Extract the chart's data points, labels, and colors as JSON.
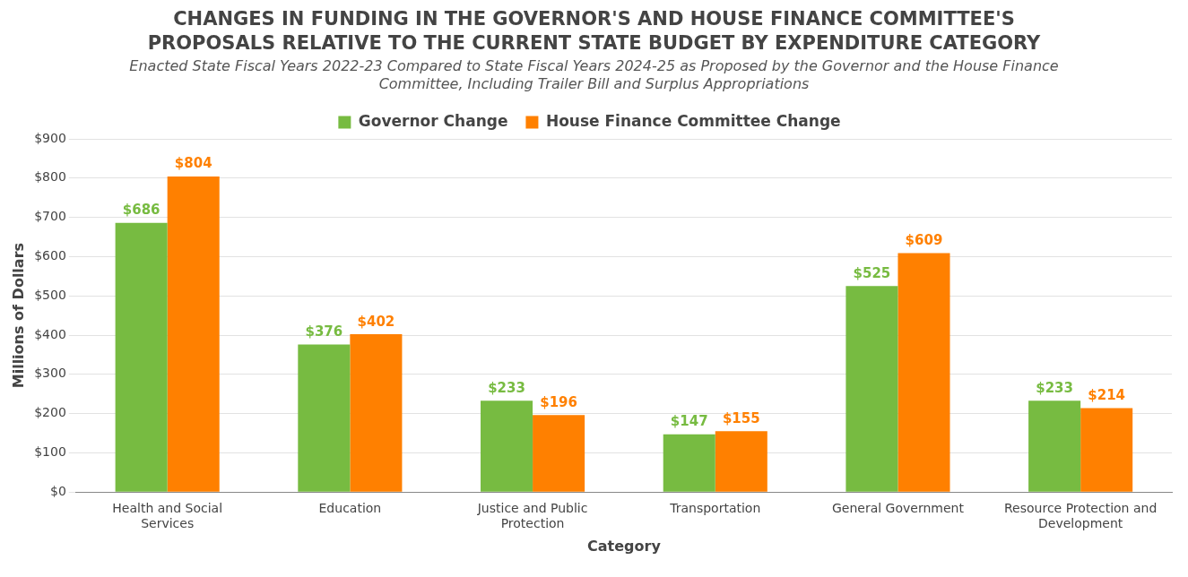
{
  "chart_data": {
    "type": "bar",
    "title": "CHANGES IN FUNDING IN THE GOVERNOR'S AND HOUSE FINANCE COMMITTEE'S PROPOSALS RELATIVE TO THE CURRENT STATE BUDGET BY EXPENDITURE CATEGORY",
    "subtitle": "Enacted State Fiscal Years 2022-23 Compared to State Fiscal Years 2024-25 as Proposed by the Governor and the House Finance Committee, Including Trailer Bill and Surplus Appropriations",
    "xlabel": "Category",
    "ylabel": "Millions of Dollars",
    "categories": [
      "Health and Social Services",
      "Education",
      "Justice and Public Protection",
      "Transportation",
      "General Government",
      "Resource Protection and Development"
    ],
    "series": [
      {
        "name": "Governor Change",
        "color": "#77bb41",
        "values": [
          686,
          376,
          233,
          147,
          525,
          233
        ],
        "value_labels": [
          "$686",
          "$376",
          "$233",
          "$147",
          "$525",
          "$233"
        ]
      },
      {
        "name": "House Finance Committee Change",
        "color": "#ff8000",
        "values": [
          804,
          402,
          196,
          155,
          609,
          214
        ],
        "value_labels": [
          "$804",
          "$402",
          "$196",
          "$155",
          "$609",
          "$214"
        ]
      }
    ],
    "ylim": [
      0,
      900
    ],
    "yticks": [
      {
        "value": 0,
        "label": "$0"
      },
      {
        "value": 100,
        "label": "$100"
      },
      {
        "value": 200,
        "label": "$200"
      },
      {
        "value": 300,
        "label": "$300"
      },
      {
        "value": 400,
        "label": "$400"
      },
      {
        "value": 500,
        "label": "$500"
      },
      {
        "value": 600,
        "label": "$600"
      },
      {
        "value": 700,
        "label": "$700"
      },
      {
        "value": 800,
        "label": "$800"
      },
      {
        "value": 900,
        "label": "$900"
      }
    ],
    "grid": "y",
    "legend": "top"
  }
}
